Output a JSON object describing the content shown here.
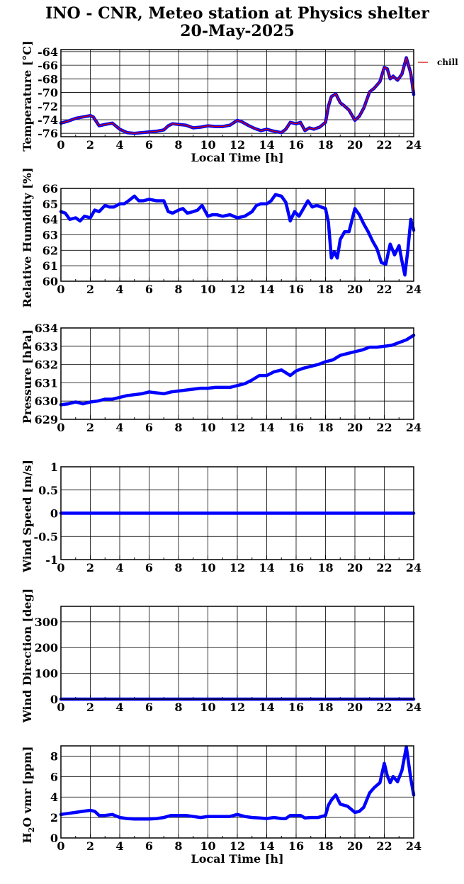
{
  "title": {
    "line1": "INO - CNR, Meteo station at Physics shelter",
    "line2": "20-May-2025"
  },
  "colors": {
    "series": "#0000ff",
    "chill": "#cc0000",
    "grid": "#000000"
  },
  "chart_data": [
    {
      "type": "line",
      "ylabel": "Temperature [°C]",
      "xlabel": "Local Time [h]",
      "xlim": [
        0,
        24
      ],
      "ylim": [
        -76.5,
        -63.7
      ],
      "xticks": [
        "0",
        "2",
        "4",
        "6",
        "8",
        "10",
        "12",
        "14",
        "16",
        "18",
        "20",
        "22",
        "24"
      ],
      "yticks": [
        "-76",
        "-74",
        "-72",
        "-70",
        "-68",
        "-66",
        "-64"
      ],
      "legend": {
        "label": "chill",
        "placement": "outside-top-right"
      },
      "series": [
        {
          "name": "",
          "color": "#0000ff",
          "x": [
            0,
            0.5,
            1,
            1.5,
            2,
            2.2,
            2.6,
            3,
            3.5,
            4,
            4.5,
            5,
            5.5,
            6,
            6.5,
            7,
            7.3,
            7.6,
            8,
            8.5,
            9,
            9.5,
            10,
            10.5,
            11,
            11.5,
            12,
            12.3,
            12.8,
            13.2,
            13.6,
            14,
            14.5,
            15,
            15.3,
            15.6,
            16,
            16.3,
            16.6,
            16.9,
            17.2,
            17.6,
            18,
            18.2,
            18.4,
            18.7,
            19,
            19.3,
            19.6,
            20,
            20.3,
            20.6,
            21,
            21.3,
            21.7,
            22,
            22.2,
            22.4,
            22.6,
            22.9,
            23.2,
            23.5,
            23.8,
            24
          ],
          "y": [
            -74.5,
            -74.2,
            -73.8,
            -73.6,
            -73.4,
            -73.6,
            -74.9,
            -74.7,
            -74.5,
            -75.4,
            -75.9,
            -76.0,
            -75.9,
            -75.8,
            -75.7,
            -75.5,
            -74.9,
            -74.6,
            -74.7,
            -74.8,
            -75.2,
            -75.1,
            -74.9,
            -75.0,
            -75.0,
            -74.8,
            -74.1,
            -74.3,
            -74.9,
            -75.3,
            -75.6,
            -75.4,
            -75.7,
            -75.9,
            -75.4,
            -74.4,
            -74.6,
            -74.4,
            -75.6,
            -75.2,
            -75.4,
            -75.1,
            -74.4,
            -72.0,
            -70.6,
            -70.2,
            -71.5,
            -72.0,
            -72.6,
            -74.1,
            -73.5,
            -72.3,
            -69.9,
            -69.4,
            -68.4,
            -66.3,
            -66.5,
            -68.0,
            -67.6,
            -68.2,
            -67.3,
            -64.9,
            -67.2,
            -70.3
          ]
        },
        {
          "name": "chill",
          "color": "#cc0000",
          "x": [
            0,
            0.5,
            1,
            1.5,
            2,
            2.2,
            2.6,
            3,
            3.5,
            4,
            4.5,
            5,
            5.5,
            6,
            6.5,
            7,
            7.3,
            7.6,
            8,
            8.5,
            9,
            9.5,
            10,
            10.5,
            11,
            11.5,
            12,
            12.3,
            12.8,
            13.2,
            13.6,
            14,
            14.5,
            15,
            15.3,
            15.6,
            16,
            16.3,
            16.6,
            16.9,
            17.2,
            17.6,
            18,
            18.2,
            18.4,
            18.7,
            19,
            19.3,
            19.6,
            20,
            20.3,
            20.6,
            21,
            21.3,
            21.7,
            22,
            22.2,
            22.4,
            22.6,
            22.9,
            23.2,
            23.5,
            23.8,
            24
          ],
          "y": [
            -74.5,
            -74.2,
            -73.8,
            -73.6,
            -73.4,
            -73.6,
            -74.9,
            -74.7,
            -74.5,
            -75.4,
            -75.9,
            -76.0,
            -75.9,
            -75.8,
            -75.7,
            -75.5,
            -74.9,
            -74.6,
            -74.7,
            -74.8,
            -75.2,
            -75.1,
            -74.9,
            -75.0,
            -75.0,
            -74.8,
            -74.1,
            -74.3,
            -74.9,
            -75.3,
            -75.6,
            -75.4,
            -75.7,
            -75.9,
            -75.4,
            -74.4,
            -74.6,
            -74.4,
            -75.6,
            -75.2,
            -75.4,
            -75.1,
            -74.4,
            -72.0,
            -70.6,
            -70.2,
            -71.5,
            -72.0,
            -72.6,
            -74.1,
            -73.5,
            -72.3,
            -69.9,
            -69.4,
            -68.4,
            -66.3,
            -66.5,
            -68.0,
            -67.6,
            -68.2,
            -67.3,
            -64.9,
            -67.2,
            -70.3
          ]
        }
      ]
    },
    {
      "type": "line",
      "ylabel": "Relative Humidity [%]",
      "xlabel": "",
      "xlim": [
        0,
        24
      ],
      "ylim": [
        60,
        66
      ],
      "xticks": [
        "0",
        "2",
        "4",
        "6",
        "8",
        "10",
        "12",
        "14",
        "16",
        "18",
        "20",
        "22",
        "24"
      ],
      "yticks": [
        "60",
        "61",
        "62",
        "63",
        "64",
        "65",
        "66"
      ],
      "series": [
        {
          "name": "",
          "color": "#0000ff",
          "x": [
            0,
            0.3,
            0.6,
            1,
            1.3,
            1.6,
            2,
            2.3,
            2.6,
            3,
            3.3,
            3.6,
            4,
            4.3,
            4.6,
            5,
            5.3,
            5.6,
            6,
            6.5,
            7,
            7.3,
            7.6,
            8,
            8.3,
            8.6,
            9,
            9.3,
            9.6,
            10,
            10.3,
            10.6,
            11,
            11.5,
            12,
            12.5,
            13,
            13.3,
            13.6,
            14,
            14.3,
            14.6,
            15,
            15.3,
            15.6,
            15.9,
            16.2,
            16.5,
            16.8,
            17.1,
            17.4,
            17.7,
            18,
            18.2,
            18.4,
            18.6,
            18.8,
            19,
            19.3,
            19.6,
            20,
            20.3,
            20.6,
            20.9,
            21.2,
            21.5,
            21.8,
            22.1,
            22.4,
            22.7,
            23,
            23.2,
            23.4,
            23.6,
            23.8,
            24
          ],
          "y": [
            64.5,
            64.4,
            64.0,
            64.1,
            63.9,
            64.2,
            64.1,
            64.6,
            64.5,
            64.9,
            64.8,
            64.8,
            65.0,
            65.0,
            65.2,
            65.5,
            65.2,
            65.2,
            65.3,
            65.2,
            65.2,
            64.5,
            64.4,
            64.6,
            64.7,
            64.4,
            64.5,
            64.6,
            64.9,
            64.2,
            64.3,
            64.3,
            64.2,
            64.3,
            64.1,
            64.2,
            64.5,
            64.9,
            65.0,
            65.0,
            65.2,
            65.6,
            65.5,
            65.1,
            63.9,
            64.5,
            64.2,
            64.7,
            65.2,
            64.8,
            64.9,
            64.8,
            64.7,
            63.8,
            61.5,
            61.9,
            61.5,
            62.7,
            63.2,
            63.2,
            64.7,
            64.3,
            63.7,
            63.2,
            62.6,
            62.1,
            61.2,
            61.1,
            62.4,
            61.7,
            62.3,
            61.3,
            60.4,
            62.0,
            64.0,
            63.3
          ]
        }
      ]
    },
    {
      "type": "line",
      "ylabel": "Pressure [hPa]",
      "xlabel": "",
      "xlim": [
        0,
        24
      ],
      "ylim": [
        629,
        634
      ],
      "xticks": [
        "0",
        "2",
        "4",
        "6",
        "8",
        "10",
        "12",
        "14",
        "16",
        "18",
        "20",
        "22",
        "24"
      ],
      "yticks": [
        "629",
        "630",
        "631",
        "632",
        "633",
        "634"
      ],
      "series": [
        {
          "name": "",
          "color": "#0000ff",
          "x": [
            0,
            0.5,
            1,
            1.5,
            2,
            2.5,
            3,
            3.5,
            4,
            4.5,
            5,
            5.5,
            6,
            6.5,
            7,
            7.5,
            8,
            8.5,
            9,
            9.5,
            10,
            10.5,
            11,
            11.5,
            12,
            12.5,
            13,
            13.5,
            14,
            14.5,
            15,
            15.3,
            15.6,
            16,
            16.5,
            17,
            17.5,
            18,
            18.5,
            19,
            19.5,
            20,
            20.5,
            21,
            21.5,
            22,
            22.5,
            23,
            23.5,
            24
          ],
          "y": [
            629.8,
            629.85,
            629.95,
            629.85,
            629.95,
            630.0,
            630.1,
            630.1,
            630.2,
            630.3,
            630.35,
            630.4,
            630.5,
            630.45,
            630.4,
            630.5,
            630.55,
            630.6,
            630.65,
            630.7,
            630.7,
            630.75,
            630.75,
            630.75,
            630.85,
            630.95,
            631.15,
            631.4,
            631.4,
            631.6,
            631.7,
            631.55,
            631.4,
            631.65,
            631.8,
            631.9,
            632.0,
            632.15,
            632.25,
            632.5,
            632.6,
            632.7,
            632.8,
            632.95,
            632.95,
            633.0,
            633.05,
            633.2,
            633.35,
            633.6
          ]
        }
      ]
    },
    {
      "type": "line",
      "ylabel": "Wind Speed [m/s]",
      "xlabel": "",
      "xlim": [
        0,
        24
      ],
      "ylim": [
        -1,
        1
      ],
      "xticks": [
        "0",
        "2",
        "4",
        "6",
        "8",
        "10",
        "12",
        "14",
        "16",
        "18",
        "20",
        "22",
        "24"
      ],
      "yticks": [
        "-1",
        "-0.5",
        "0",
        "0.5",
        "1"
      ],
      "series": [
        {
          "name": "",
          "color": "#0000ff",
          "x": [
            0,
            24
          ],
          "y": [
            0,
            0
          ]
        }
      ]
    },
    {
      "type": "line",
      "ylabel": "Wind Direction [deg]",
      "xlabel": "",
      "xlim": [
        0,
        24
      ],
      "ylim": [
        0,
        360
      ],
      "xticks": [
        "0",
        "2",
        "4",
        "6",
        "8",
        "10",
        "12",
        "14",
        "16",
        "18",
        "20",
        "22",
        "24"
      ],
      "yticks": [
        "0",
        "100",
        "200",
        "300"
      ],
      "series": [
        {
          "name": "",
          "color": "#0000ff",
          "x": [
            0,
            24
          ],
          "y": [
            0,
            0
          ]
        }
      ]
    },
    {
      "type": "line",
      "ylabel": "H2O vmr [ppm]",
      "xlabel": "Local Time [h]",
      "xlim": [
        0,
        24
      ],
      "ylim": [
        0,
        9
      ],
      "xticks": [
        "0",
        "2",
        "4",
        "6",
        "8",
        "10",
        "12",
        "14",
        "16",
        "18",
        "20",
        "22",
        "24"
      ],
      "yticks": [
        "0",
        "2",
        "4",
        "6",
        "8"
      ],
      "series": [
        {
          "name": "",
          "color": "#0000ff",
          "x": [
            0,
            0.5,
            1,
            1.5,
            2,
            2.3,
            2.6,
            3,
            3.5,
            4,
            4.5,
            5,
            5.5,
            6,
            6.5,
            7,
            7.5,
            8,
            8.5,
            9,
            9.5,
            10,
            10.5,
            11,
            11.5,
            12,
            12.5,
            13,
            13.5,
            14,
            14.5,
            15,
            15.3,
            15.6,
            16,
            16.3,
            16.6,
            17,
            17.5,
            18,
            18.2,
            18.4,
            18.7,
            19,
            19.5,
            20,
            20.3,
            20.6,
            21,
            21.3,
            21.7,
            22,
            22.2,
            22.4,
            22.6,
            22.9,
            23.2,
            23.5,
            23.8,
            24
          ],
          "y": [
            2.3,
            2.4,
            2.5,
            2.6,
            2.7,
            2.6,
            2.2,
            2.2,
            2.3,
            2.0,
            1.9,
            1.85,
            1.85,
            1.85,
            1.9,
            2.0,
            2.2,
            2.2,
            2.2,
            2.1,
            2.0,
            2.1,
            2.1,
            2.1,
            2.1,
            2.3,
            2.1,
            2.0,
            1.95,
            1.9,
            2.0,
            1.9,
            1.9,
            2.2,
            2.2,
            2.2,
            1.95,
            2.0,
            2.0,
            2.2,
            3.2,
            3.7,
            4.2,
            3.3,
            3.1,
            2.5,
            2.6,
            3.0,
            4.4,
            4.9,
            5.4,
            7.3,
            6.1,
            5.4,
            6.0,
            5.5,
            6.6,
            8.9,
            5.8,
            4.2
          ]
        }
      ]
    }
  ]
}
